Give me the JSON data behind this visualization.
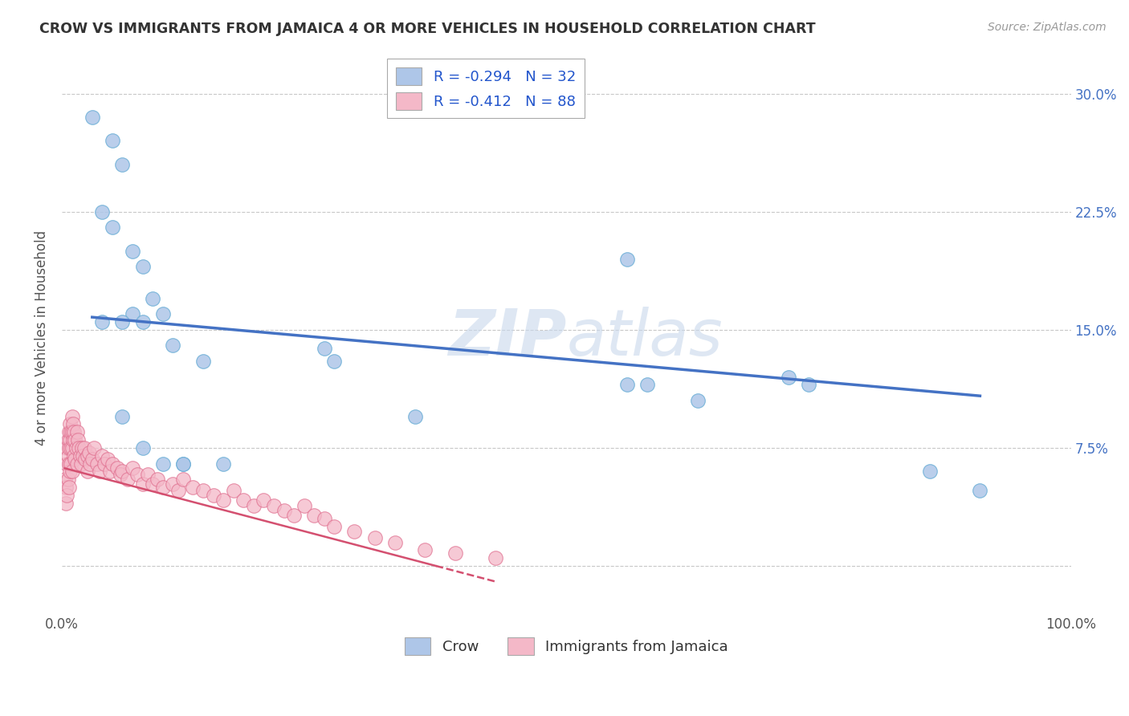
{
  "title": "CROW VS IMMIGRANTS FROM JAMAICA 4 OR MORE VEHICLES IN HOUSEHOLD CORRELATION CHART",
  "source": "Source: ZipAtlas.com",
  "ylabel": "4 or more Vehicles in Household",
  "xlim": [
    0.0,
    1.0
  ],
  "ylim": [
    -0.03,
    0.32
  ],
  "xticks": [
    0.0,
    0.25,
    0.5,
    0.75,
    1.0
  ],
  "xticklabels": [
    "0.0%",
    "",
    "",
    "",
    "100.0%"
  ],
  "yticks": [
    0.0,
    0.075,
    0.15,
    0.225,
    0.3
  ],
  "yticklabels": [
    "",
    "7.5%",
    "15.0%",
    "22.5%",
    "30.0%"
  ],
  "legend_labels": [
    "Crow",
    "Immigrants from Jamaica"
  ],
  "crow_R": -0.294,
  "crow_N": 32,
  "jamaica_R": -0.412,
  "jamaica_N": 88,
  "crow_color": "#aec6e8",
  "crow_edge_color": "#6aaed6",
  "crow_line_color": "#4472c4",
  "jamaica_color": "#f4b8c8",
  "jamaica_edge_color": "#e07090",
  "jamaica_line_color": "#d45070",
  "watermark_color": "#c8d8ec",
  "background_color": "#ffffff",
  "grid_color": "#c8c8c8",
  "crow_scatter_x": [
    0.03,
    0.05,
    0.06,
    0.04,
    0.05,
    0.07,
    0.08,
    0.09,
    0.07,
    0.08,
    0.1,
    0.11,
    0.12,
    0.14,
    0.16,
    0.26,
    0.27,
    0.35,
    0.56,
    0.58,
    0.63,
    0.72,
    0.74,
    0.86,
    0.91,
    0.04,
    0.06,
    0.06,
    0.08,
    0.1,
    0.12,
    0.56
  ],
  "crow_scatter_y": [
    0.285,
    0.27,
    0.255,
    0.225,
    0.215,
    0.2,
    0.19,
    0.17,
    0.16,
    0.155,
    0.16,
    0.14,
    0.065,
    0.13,
    0.065,
    0.138,
    0.13,
    0.095,
    0.195,
    0.115,
    0.105,
    0.12,
    0.115,
    0.06,
    0.048,
    0.155,
    0.155,
    0.095,
    0.075,
    0.065,
    0.065,
    0.115
  ],
  "jamaica_scatter_x": [
    0.003,
    0.004,
    0.004,
    0.005,
    0.005,
    0.005,
    0.006,
    0.006,
    0.006,
    0.007,
    0.007,
    0.007,
    0.007,
    0.008,
    0.008,
    0.008,
    0.009,
    0.009,
    0.009,
    0.01,
    0.01,
    0.01,
    0.01,
    0.011,
    0.011,
    0.012,
    0.012,
    0.013,
    0.013,
    0.014,
    0.015,
    0.015,
    0.016,
    0.017,
    0.018,
    0.019,
    0.02,
    0.021,
    0.022,
    0.023,
    0.025,
    0.025,
    0.027,
    0.028,
    0.03,
    0.032,
    0.035,
    0.037,
    0.04,
    0.042,
    0.045,
    0.048,
    0.05,
    0.055,
    0.058,
    0.06,
    0.065,
    0.07,
    0.075,
    0.08,
    0.085,
    0.09,
    0.095,
    0.1,
    0.11,
    0.115,
    0.12,
    0.13,
    0.14,
    0.15,
    0.16,
    0.17,
    0.18,
    0.19,
    0.2,
    0.21,
    0.22,
    0.23,
    0.24,
    0.25,
    0.26,
    0.27,
    0.29,
    0.31,
    0.33,
    0.36,
    0.39,
    0.43
  ],
  "jamaica_scatter_y": [
    0.055,
    0.05,
    0.04,
    0.075,
    0.065,
    0.045,
    0.08,
    0.07,
    0.055,
    0.085,
    0.075,
    0.065,
    0.05,
    0.09,
    0.08,
    0.06,
    0.085,
    0.075,
    0.065,
    0.095,
    0.085,
    0.075,
    0.06,
    0.09,
    0.08,
    0.085,
    0.07,
    0.08,
    0.068,
    0.075,
    0.085,
    0.065,
    0.08,
    0.075,
    0.07,
    0.065,
    0.075,
    0.07,
    0.075,
    0.068,
    0.07,
    0.06,
    0.072,
    0.065,
    0.068,
    0.075,
    0.065,
    0.06,
    0.07,
    0.065,
    0.068,
    0.06,
    0.065,
    0.062,
    0.058,
    0.06,
    0.055,
    0.062,
    0.058,
    0.052,
    0.058,
    0.052,
    0.055,
    0.05,
    0.052,
    0.048,
    0.055,
    0.05,
    0.048,
    0.045,
    0.042,
    0.048,
    0.042,
    0.038,
    0.042,
    0.038,
    0.035,
    0.032,
    0.038,
    0.032,
    0.03,
    0.025,
    0.022,
    0.018,
    0.015,
    0.01,
    0.008,
    0.005
  ],
  "crow_trend_x": [
    0.03,
    0.91
  ],
  "crow_trend_y": [
    0.158,
    0.108
  ],
  "jamaica_trend_x": [
    0.003,
    0.43
  ],
  "jamaica_trend_y": [
    0.062,
    -0.01
  ]
}
